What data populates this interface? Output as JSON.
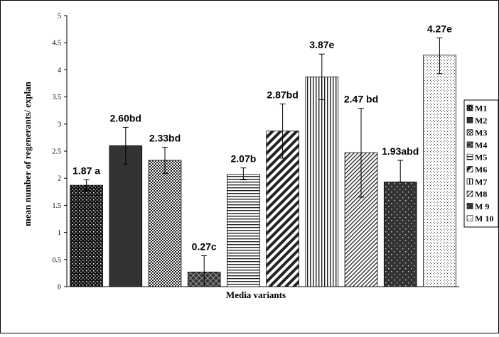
{
  "chart_data": {
    "type": "bar",
    "xlabel": "Media variants",
    "ylabel": "mean number of regenerants/ explan",
    "ylim": [
      0,
      5
    ],
    "yticks": [
      "0",
      "0.5",
      "1",
      "1.5",
      "2",
      "2.5",
      "3",
      "3.5",
      "4",
      "4.5",
      "5"
    ],
    "grid": false,
    "legend_position": "right",
    "series": [
      {
        "name": "M1",
        "value": 1.87,
        "err_low": 1.77,
        "err_high": 1.97,
        "label": "1.87 a",
        "pattern": "dots-white-on-black"
      },
      {
        "name": "M2",
        "value": 2.6,
        "err_low": 2.26,
        "err_high": 2.94,
        "label": "2.60bd",
        "pattern": "solid-dark"
      },
      {
        "name": "M3",
        "value": 2.33,
        "err_low": 2.09,
        "err_high": 2.57,
        "label": "2.33bd",
        "pattern": "checker"
      },
      {
        "name": "M4",
        "value": 0.27,
        "err_low": 0.0,
        "err_high": 0.57,
        "label": "0.27c",
        "pattern": "diamonds"
      },
      {
        "name": "M5",
        "value": 2.07,
        "err_low": 1.97,
        "err_high": 2.19,
        "label": "2.07b",
        "pattern": "horizontal-lines"
      },
      {
        "name": "M6",
        "value": 2.87,
        "err_low": 2.37,
        "err_high": 3.37,
        "label": "2.87bd",
        "pattern": "wide-diagonal"
      },
      {
        "name": "M7",
        "value": 3.87,
        "err_low": 3.45,
        "err_high": 4.29,
        "label": "3.87e",
        "pattern": "vertical-lines"
      },
      {
        "name": "M8",
        "value": 2.47,
        "err_low": 1.65,
        "err_high": 3.29,
        "label": "2.47 bd",
        "pattern": "narrow-diagonal"
      },
      {
        "name": "M 9",
        "value": 1.93,
        "err_low": 1.93,
        "err_high": 2.33,
        "label": "1.93abd",
        "pattern": "sparse-dots-on-dark"
      },
      {
        "name": "M 10",
        "value": 4.27,
        "err_low": 3.93,
        "err_high": 4.59,
        "label": "4.27e",
        "pattern": "fine-dots-on-white"
      }
    ],
    "colors": {
      "bar_dark": "#2b2b2b",
      "axis": "#000000",
      "background": "#ffffff"
    }
  }
}
